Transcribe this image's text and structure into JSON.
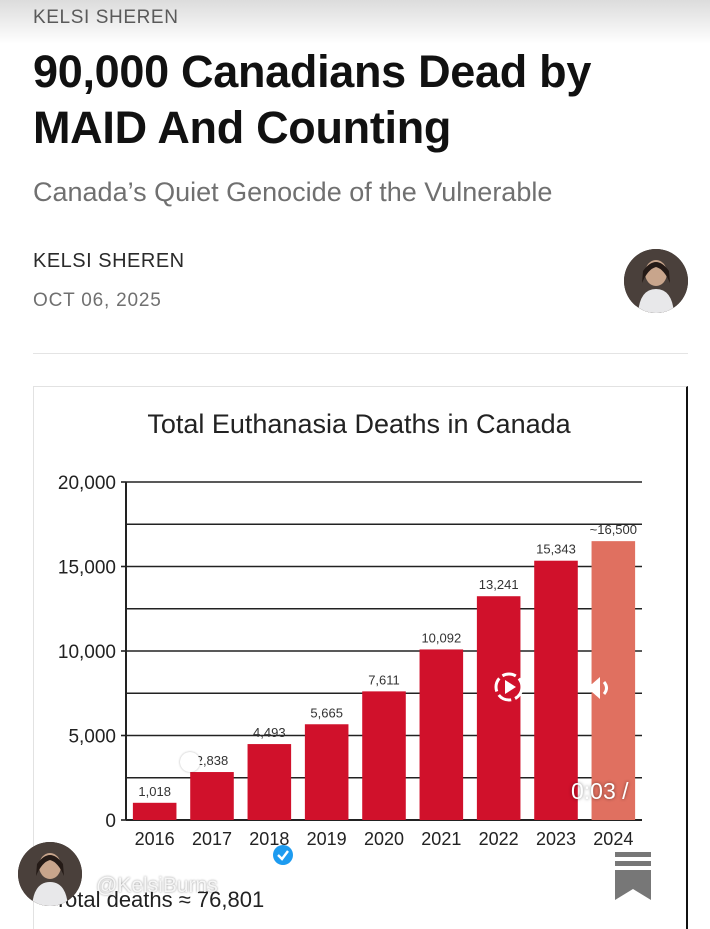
{
  "post": {
    "author_top": "KELSI SHEREN",
    "title": "90,000 Canadians Dead by MAID And Counting",
    "subtitle": "Canada’s Quiet Genocide of the Vulnerable",
    "byline_name": "KELSI SHEREN",
    "date": "OCT 06, 2025"
  },
  "video": {
    "time": "0:03 /",
    "handle": "@KelsiBurns"
  },
  "chart_data": {
    "type": "bar",
    "title": "Total Euthanasia Deaths in Canada",
    "categories": [
      "2016",
      "2017",
      "2018",
      "2019",
      "2020",
      "2021",
      "2022",
      "2023",
      "2024"
    ],
    "values": [
      1018,
      2838,
      4493,
      5665,
      7611,
      10092,
      13241,
      15343,
      16500
    ],
    "labels": [
      "1,018",
      "2,838",
      "4,493",
      "5,665",
      "7,611",
      "10,092",
      "13,241",
      "15,343",
      "~16,500"
    ],
    "estimated": [
      false,
      false,
      false,
      false,
      false,
      false,
      false,
      false,
      true
    ],
    "yticks": [
      0,
      5000,
      10000,
      15000,
      20000
    ],
    "ytick_labels": [
      "0",
      "5,000",
      "10,000",
      "15,000",
      "20,000"
    ],
    "ylim": [
      0,
      20000
    ],
    "xlabel": "",
    "ylabel": "",
    "footer": "Total deaths ≈ 76,801",
    "colors": {
      "bar": "#d0112b",
      "estimated_bar": "#e07060",
      "grid": "#222222"
    }
  }
}
